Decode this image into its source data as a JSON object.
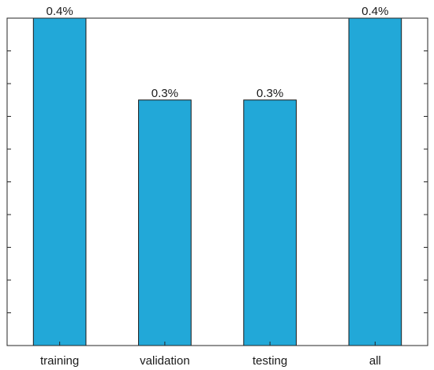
{
  "chart_data": {
    "type": "bar",
    "categories": [
      "training",
      "validation",
      "testing",
      "all"
    ],
    "values": [
      0.4,
      0.3,
      0.3,
      0.4
    ],
    "data_labels": [
      "0.4%",
      "0.3%",
      "0.3%",
      "0.4%"
    ],
    "title": "",
    "xlabel": "",
    "ylabel": "",
    "ylim": [
      0,
      0.4
    ],
    "y_tick_count": 11,
    "grid": false,
    "legend": "none",
    "bar_color": "#22A8D8",
    "bar_edge_color": "#1a1a1a",
    "axis_color": "#262626"
  }
}
